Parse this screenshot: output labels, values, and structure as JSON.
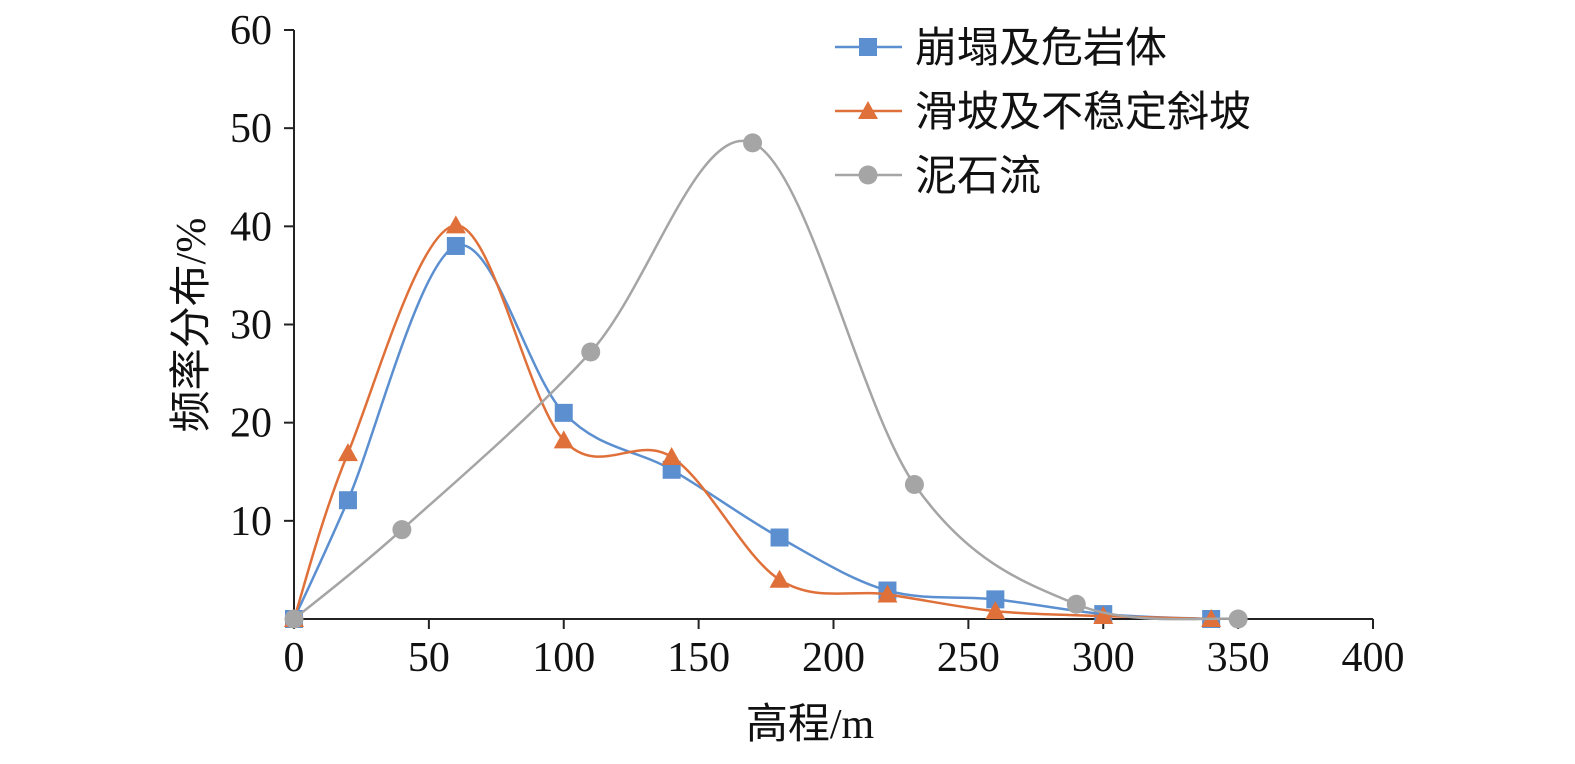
{
  "chart_data": {
    "type": "line",
    "title": "",
    "xlabel": "高程/m",
    "ylabel": "频率分布/%",
    "xlim": [
      0,
      400
    ],
    "ylim": [
      0,
      60
    ],
    "xticks": [
      0,
      50,
      100,
      150,
      200,
      250,
      300,
      350,
      400
    ],
    "yticks": [
      10,
      20,
      30,
      40,
      50,
      60
    ],
    "grid": false,
    "legend_position": "top-right",
    "series": [
      {
        "name": "崩塌及危岩体",
        "color": "#5b8fd0",
        "marker": "square",
        "x": [
          0,
          20,
          60,
          100,
          140,
          180,
          220,
          260,
          300,
          340
        ],
        "y": [
          0,
          12.1,
          38.0,
          21.0,
          15.2,
          8.3,
          2.9,
          2.0,
          0.5,
          0
        ]
      },
      {
        "name": "滑坡及不稳定斜坡",
        "color": "#e0703a",
        "marker": "triangle",
        "x": [
          0,
          20,
          60,
          100,
          140,
          180,
          220,
          260,
          300,
          340
        ],
        "y": [
          0,
          16.9,
          40.1,
          18.2,
          16.5,
          4.0,
          2.5,
          0.8,
          0.3,
          0
        ]
      },
      {
        "name": "泥石流",
        "color": "#a5a5a5",
        "marker": "circle",
        "x": [
          0,
          40,
          110,
          170,
          230,
          290,
          350
        ],
        "y": [
          0,
          9.1,
          27.2,
          48.5,
          13.7,
          1.5,
          0
        ]
      }
    ]
  }
}
